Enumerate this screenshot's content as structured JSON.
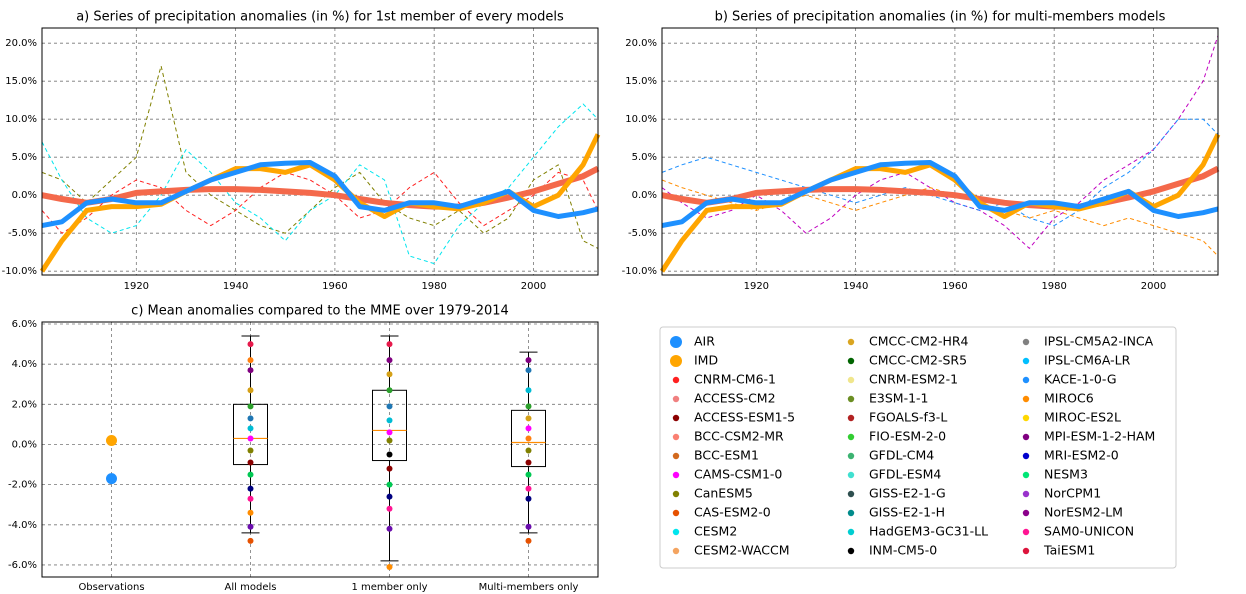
{
  "chart_data": [
    {
      "type": "line",
      "title": "a) Series of precipitation anomalies (in %) for 1st member of every models",
      "x": [
        1901,
        1905,
        1910,
        1915,
        1920,
        1925,
        1930,
        1935,
        1940,
        1945,
        1950,
        1955,
        1960,
        1965,
        1970,
        1975,
        1980,
        1985,
        1990,
        1995,
        2000,
        2005,
        2010,
        2013
      ],
      "xlim": [
        1901,
        2013
      ],
      "xticks": [
        1920,
        1940,
        1960,
        1980,
        2000
      ],
      "ylim": [
        -10.5,
        22
      ],
      "yticks": [
        {
          "value": -10,
          "label": "-10.0%"
        },
        {
          "value": -5,
          "label": "-5.0%"
        },
        {
          "value": 0,
          "label": "0.0%"
        },
        {
          "value": 5,
          "label": "5.0%"
        },
        {
          "value": 10,
          "label": "10.0%"
        },
        {
          "value": 15,
          "label": "15.0%"
        },
        {
          "value": 20,
          "label": "20.0%"
        }
      ],
      "grid": true,
      "series": [
        {
          "name": "CanESM5",
          "color": "#808000",
          "dashed": true,
          "width": 1,
          "values": [
            3,
            2,
            -1,
            2,
            5,
            17,
            3,
            0,
            -2,
            -4,
            -5,
            -2,
            1,
            3,
            -1,
            -3,
            -4,
            -2,
            -5,
            -3,
            2,
            4,
            -6,
            -7
          ]
        },
        {
          "name": "CESM2",
          "color": "#00e5ee",
          "dashed": true,
          "width": 1,
          "values": [
            7,
            2,
            -3,
            -5,
            -4,
            0,
            6,
            3,
            -1,
            -3,
            -6,
            -2,
            0,
            4,
            2,
            -8,
            -9,
            -4,
            -1,
            1,
            5,
            9,
            12,
            10
          ]
        },
        {
          "name": "CNRM-CM6-1",
          "color": "#ff2020",
          "dashed": true,
          "width": 1,
          "values": [
            -2,
            -5,
            -3,
            0,
            2,
            1,
            -2,
            -4,
            -2,
            1,
            3,
            2,
            0,
            -3,
            -2,
            1,
            3,
            -1,
            -4,
            -2,
            0,
            3,
            2,
            -2
          ]
        },
        {
          "color": "#f4694b",
          "width": 6,
          "values": [
            0,
            -0.5,
            -1,
            -0.5,
            0.3,
            0.5,
            0.7,
            0.8,
            0.8,
            0.7,
            0.5,
            0.3,
            0,
            -0.5,
            -1,
            -1.3,
            -1.5,
            -1.5,
            -1,
            -0.3,
            0.5,
            1.5,
            2.5,
            3.5
          ]
        },
        {
          "name": "IMD",
          "color": "#ffa500",
          "width": 5,
          "values": [
            -10,
            -6,
            -2,
            -1.5,
            -1.5,
            -1.2,
            0.5,
            2,
            3.5,
            3.5,
            3,
            4,
            2,
            -1,
            -2.8,
            -1,
            -1.5,
            -1.8,
            -1,
            0.5,
            -1.5,
            0,
            4,
            8
          ]
        },
        {
          "name": "AIR",
          "color": "#1e90ff",
          "width": 5,
          "values": [
            -4,
            -3.5,
            -1,
            -0.5,
            -1,
            -1,
            0.5,
            2,
            3,
            4,
            4.2,
            4.3,
            2.5,
            -1.5,
            -2,
            -1,
            -1,
            -1.5,
            -0.5,
            0.5,
            -2,
            -2.8,
            -2.3,
            -1.8
          ]
        }
      ]
    },
    {
      "type": "line",
      "title": "b) Series of precipitation anomalies (in %) for multi-members models",
      "x": [
        1901,
        1905,
        1910,
        1915,
        1920,
        1925,
        1930,
        1935,
        1940,
        1945,
        1950,
        1955,
        1960,
        1965,
        1970,
        1975,
        1980,
        1985,
        1990,
        1995,
        2000,
        2005,
        2010,
        2013
      ],
      "xlim": [
        1901,
        2013
      ],
      "xticks": [
        1920,
        1940,
        1960,
        1980,
        2000
      ],
      "ylim": [
        -10.5,
        22
      ],
      "yticks": [
        {
          "value": -10,
          "label": "-10.0%"
        },
        {
          "value": -5,
          "label": "-5.0%"
        },
        {
          "value": 0,
          "label": "0.0%"
        },
        {
          "value": 5,
          "label": "5.0%"
        },
        {
          "value": 10,
          "label": "10.0%"
        },
        {
          "value": 15,
          "label": "15.0%"
        },
        {
          "value": 20,
          "label": "20.0%"
        }
      ],
      "grid": true,
      "series": [
        {
          "name": "MPI-ESM-1-2-HAM",
          "color": "#c000c0",
          "dashed": true,
          "width": 1,
          "values": [
            1,
            -1,
            -3,
            -2,
            0,
            -2,
            -5,
            -3,
            0,
            2,
            3,
            1,
            -1,
            -2,
            -4,
            -7,
            -3,
            -1,
            2,
            4,
            6,
            10,
            15,
            21
          ]
        },
        {
          "name": "MIROC6",
          "color": "#ff8c00",
          "dashed": true,
          "width": 1,
          "values": [
            2,
            1,
            0,
            -1,
            -2,
            -1,
            0,
            -1,
            -2,
            -1,
            0,
            1,
            0,
            -1,
            -2,
            -3,
            -2,
            -3,
            -4,
            -3,
            -4,
            -5,
            -6,
            -8
          ]
        },
        {
          "name": "KACE-1-0-G",
          "color": "#1e90ff",
          "dashed": true,
          "width": 1,
          "values": [
            3,
            4,
            5,
            4,
            3,
            2,
            1,
            0,
            -1,
            0,
            1,
            0,
            -1,
            -2,
            -1,
            -3,
            -4,
            -2,
            1,
            3,
            6,
            10,
            10,
            8
          ]
        },
        {
          "color": "#f4694b",
          "width": 6,
          "values": [
            0,
            -0.5,
            -1,
            -0.5,
            0.3,
            0.5,
            0.7,
            0.8,
            0.8,
            0.7,
            0.5,
            0.3,
            0,
            -0.5,
            -1,
            -1.3,
            -1.5,
            -1.5,
            -1,
            -0.3,
            0.5,
            1.5,
            2.5,
            3.5
          ]
        },
        {
          "name": "IMD",
          "color": "#ffa500",
          "width": 5,
          "values": [
            -10,
            -6,
            -2,
            -1.5,
            -1.5,
            -1.2,
            0.5,
            2,
            3.5,
            3.5,
            3,
            4,
            2,
            -1,
            -2.8,
            -1,
            -1.5,
            -1.8,
            -1,
            0.5,
            -1.5,
            0,
            4,
            8
          ]
        },
        {
          "name": "AIR",
          "color": "#1e90ff",
          "width": 5,
          "values": [
            -4,
            -3.5,
            -1,
            -0.5,
            -1,
            -1,
            0.5,
            2,
            3,
            4,
            4.2,
            4.3,
            2.5,
            -1.5,
            -2,
            -1,
            -1,
            -1.5,
            -0.5,
            0.5,
            -2,
            -2.8,
            -2.3,
            -1.8
          ]
        }
      ]
    },
    {
      "type": "box",
      "title": "c) Mean anomalies compared to the MME over 1979-2014",
      "categories": [
        "Observations",
        "All models",
        "1 member only",
        "Multi-members only"
      ],
      "ylim": [
        -6.6,
        6.1
      ],
      "yticks": [
        {
          "value": -6,
          "label": "-6.0%"
        },
        {
          "value": -4,
          "label": "-4.0%"
        },
        {
          "value": -2,
          "label": "-2.0%"
        },
        {
          "value": 0,
          "label": "0.0%"
        },
        {
          "value": 2,
          "label": "2.0%"
        },
        {
          "value": 4,
          "label": "4.0%"
        },
        {
          "value": 6,
          "label": "6.0%"
        }
      ],
      "grid": true,
      "series": [
        {
          "name": "AIR",
          "color": "#1e90ff",
          "values": [
            -1.7,
            null,
            null,
            null
          ]
        },
        {
          "name": "IMD",
          "color": "#ffa500",
          "values": [
            0.2,
            null,
            null,
            null
          ]
        }
      ],
      "boxes": [
        null,
        {
          "whislo": -4.4,
          "q1": -1,
          "med": 0.3,
          "q3": 2,
          "whishi": 5.4,
          "points": [
            5.0,
            4.2,
            3.7,
            2.7,
            1.9,
            1.3,
            0.8,
            0.3,
            -0.3,
            -0.9,
            -1.5,
            -2.2,
            -2.7,
            -3.4,
            -4.1,
            -4.8
          ],
          "point_colors": [
            "#e6194b",
            "#ff7f0e",
            "#800080",
            "#d4a017",
            "#2ca02c",
            "#1f77b4",
            "#00bcd4",
            "#ff00ff",
            "#808000",
            "#8b0000",
            "#00c853",
            "#000080",
            "#ff1493",
            "#ff8c00",
            "#6a0dad",
            "#e65100"
          ]
        },
        {
          "whislo": -5.8,
          "q1": -0.8,
          "med": 0.7,
          "q3": 2.7,
          "whishi": 5.4,
          "points": [
            5.0,
            4.2,
            3.5,
            2.7,
            1.9,
            1.2,
            0.6,
            0.2,
            -0.5,
            -1.2,
            -2.0,
            -2.6,
            -3.2,
            -4.2,
            -6.1
          ],
          "point_colors": [
            "#e6194b",
            "#800080",
            "#d4a017",
            "#2ca02c",
            "#1f77b4",
            "#00bcd4",
            "#ff00ff",
            "#808000",
            "#000000",
            "#8b0000",
            "#00c853",
            "#000080",
            "#ff1493",
            "#6a0dad",
            "#ff8c00"
          ]
        },
        {
          "whislo": -4.4,
          "q1": -1.1,
          "med": 0.1,
          "q3": 1.7,
          "whishi": 4.6,
          "points": [
            4.2,
            3.7,
            2.7,
            1.9,
            1.3,
            0.8,
            0.3,
            -0.3,
            -0.9,
            -1.5,
            -2.2,
            -2.7,
            -4.1,
            -4.8
          ],
          "point_colors": [
            "#800080",
            "#1f77b4",
            "#00bcd4",
            "#2ca02c",
            "#d4a017",
            "#ff00ff",
            "#ff7f0e",
            "#808000",
            "#8b0000",
            "#00c853",
            "#ff1493",
            "#000080",
            "#6a0dad",
            "#e65100"
          ]
        }
      ]
    }
  ],
  "legend": {
    "items": [
      {
        "name": "AIR",
        "color": "#1e90ff",
        "big": true
      },
      {
        "name": "IMD",
        "color": "#ffa500",
        "big": true
      },
      {
        "name": "CNRM-CM6-1",
        "color": "#ff2020"
      },
      {
        "name": "ACCESS-CM2",
        "color": "#f08080"
      },
      {
        "name": "ACCESS-ESM1-5",
        "color": "#8b0000"
      },
      {
        "name": "BCC-CSM2-MR",
        "color": "#fa8072"
      },
      {
        "name": "BCC-ESM1",
        "color": "#d2691e"
      },
      {
        "name": "CAMS-CSM1-0",
        "color": "#ff00ff"
      },
      {
        "name": "CanESM5",
        "color": "#808000"
      },
      {
        "name": "CAS-ESM2-0",
        "color": "#e65100"
      },
      {
        "name": "CESM2",
        "color": "#00e5ee"
      },
      {
        "name": "CESM2-WACCM",
        "color": "#f4a460"
      },
      {
        "name": "CMCC-CM2-HR4",
        "color": "#daa520"
      },
      {
        "name": "CMCC-CM2-SR5",
        "color": "#006400"
      },
      {
        "name": "CNRM-ESM2-1",
        "color": "#f0e68c"
      },
      {
        "name": "E3SM-1-1",
        "color": "#6b8e23"
      },
      {
        "name": "FGOALS-f3-L",
        "color": "#b22222"
      },
      {
        "name": "FIO-ESM-2-0",
        "color": "#32cd32"
      },
      {
        "name": "GFDL-CM4",
        "color": "#3cb371"
      },
      {
        "name": "GFDL-ESM4",
        "color": "#40e0d0"
      },
      {
        "name": "GISS-E2-1-G",
        "color": "#2f4f4f"
      },
      {
        "name": "GISS-E2-1-H",
        "color": "#008b8b"
      },
      {
        "name": "HadGEM3-GC31-LL",
        "color": "#00ced1"
      },
      {
        "name": "INM-CM5-0",
        "color": "#000000"
      },
      {
        "name": "IPSL-CM5A2-INCA",
        "color": "#808080"
      },
      {
        "name": "IPSL-CM6A-LR",
        "color": "#00bfff"
      },
      {
        "name": "KACE-1-0-G",
        "color": "#1e90ff"
      },
      {
        "name": "MIROC6",
        "color": "#ff8c00"
      },
      {
        "name": "MIROC-ES2L",
        "color": "#ffd700"
      },
      {
        "name": "MPI-ESM-1-2-HAM",
        "color": "#800080"
      },
      {
        "name": "MRI-ESM2-0",
        "color": "#0000cd"
      },
      {
        "name": "NESM3",
        "color": "#00e676"
      },
      {
        "name": "NorCPM1",
        "color": "#9932cc"
      },
      {
        "name": "NorESM2-LM",
        "color": "#8b008b"
      },
      {
        "name": "SAM0-UNICON",
        "color": "#ff1493"
      },
      {
        "name": "TaiESM1",
        "color": "#dc143c"
      }
    ]
  }
}
